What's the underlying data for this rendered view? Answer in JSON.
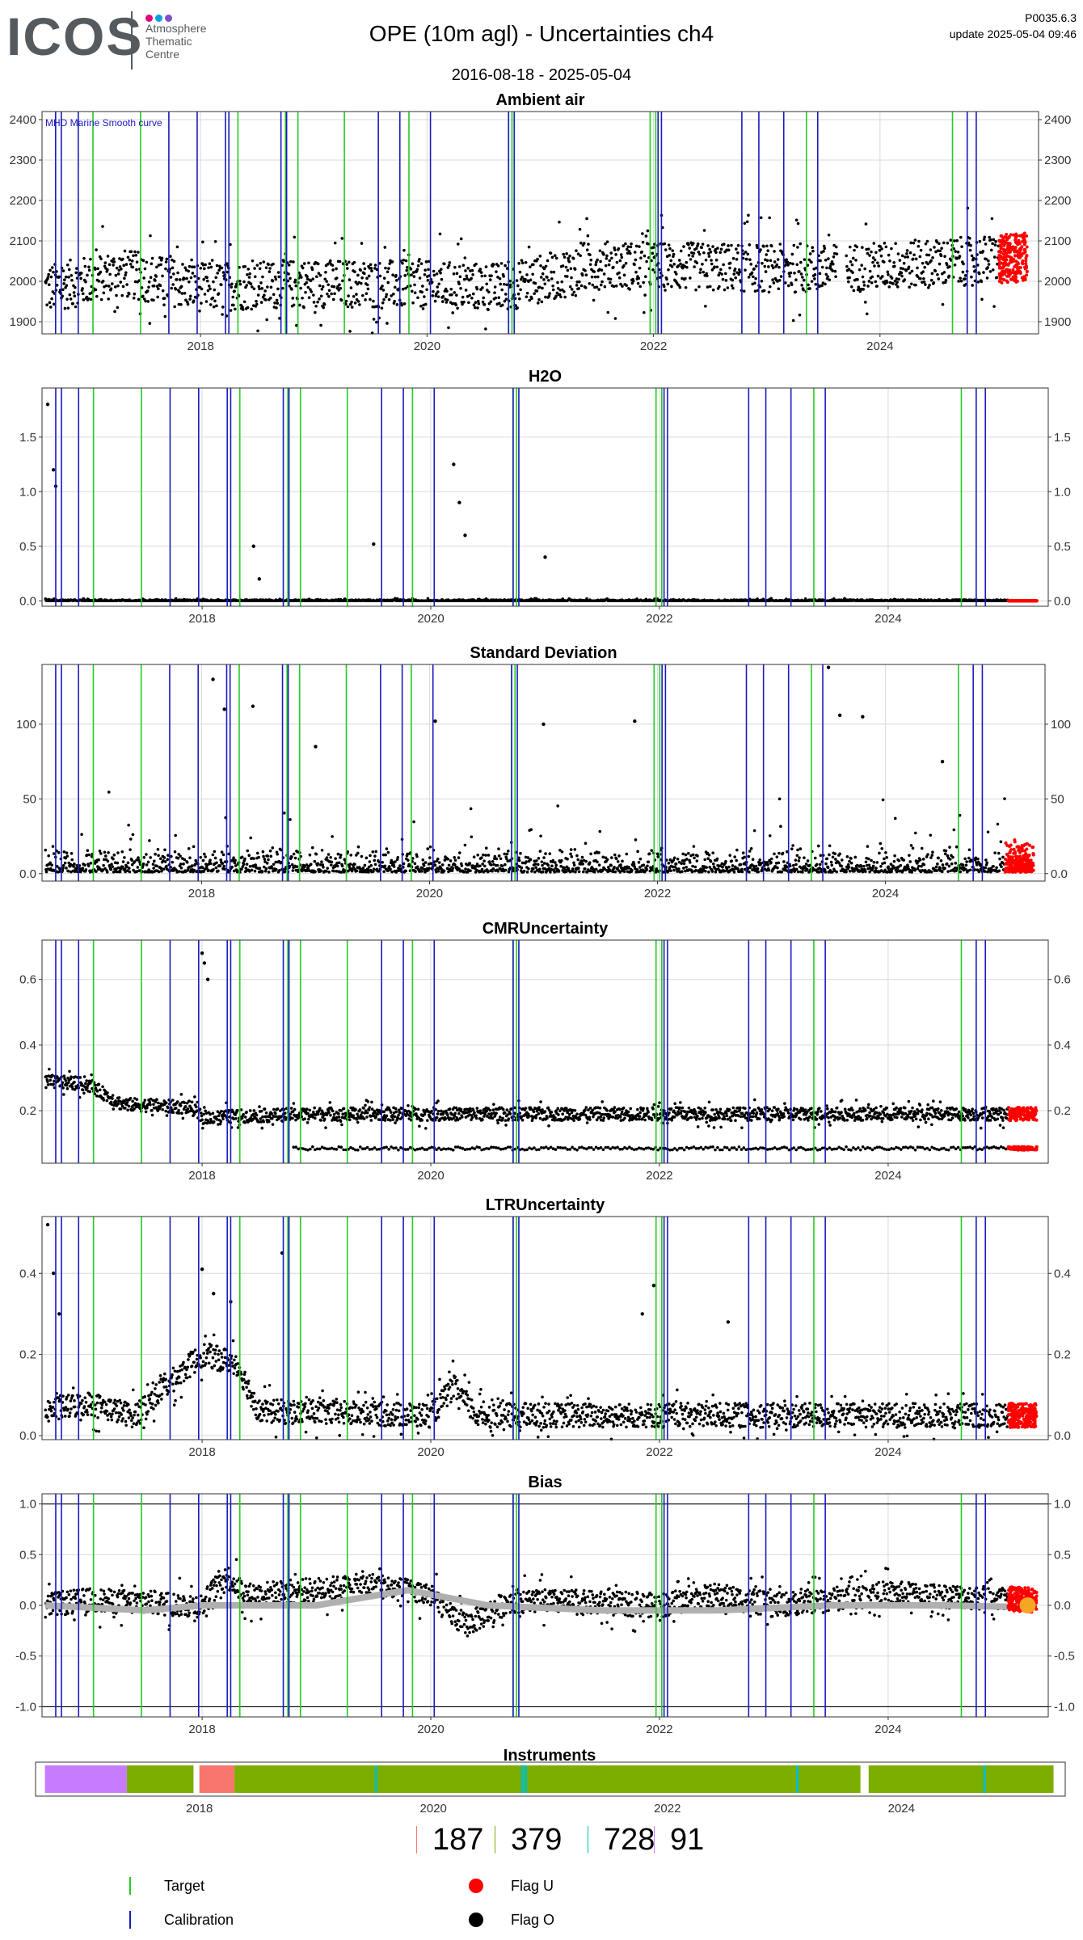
{
  "header": {
    "logo": "ICOS",
    "logo_sub": "Atmosphere Thematic Centre",
    "title": "OPE  (10m agl) - Uncertainties ch4",
    "date_range": "2016-08-18 - 2025-05-04",
    "code": "P0035.6.3",
    "update": "update  2025-05-04 09:46"
  },
  "colors": {
    "target": "#22cc22",
    "calibration": "#1a1abf",
    "flag_u": "#ff0000",
    "flag_o": "#000000",
    "grid": "#d9d9d9",
    "bias_smooth": "#b0b0b0",
    "instr_violet": "#c77cff",
    "instr_green": "#7cae00",
    "instr_red": "#f8766d",
    "instr_cyan": "#00bfc4",
    "logo_dots": [
      "#e4007c",
      "#00a0e0",
      "#7a4fc9"
    ]
  },
  "vertical_lines": {
    "calibration_x": [
      2016.72,
      2016.77,
      2016.92,
      2017.72,
      2017.97,
      2018.22,
      2018.25,
      2018.71,
      2018.76,
      2019.57,
      2019.76,
      2020.03,
      2020.72,
      2020.77,
      2022.04,
      2022.07,
      2022.78,
      2022.93,
      2023.15,
      2023.45,
      2024.77,
      2024.85
    ],
    "target_x": [
      2017.05,
      2017.47,
      2018.33,
      2018.75,
      2018.86,
      2019.27,
      2019.84,
      2020.72,
      2020.75,
      2021.97,
      2022.02,
      2023.35,
      2024.64
    ]
  },
  "chart_data": [
    {
      "type": "scatter",
      "title": "Ambient air",
      "annotation": "MHD Marine Smooth curve",
      "xlim": [
        2016.6,
        2025.4
      ],
      "ylim": [
        1870,
        2420
      ],
      "yticks": [
        1900,
        2000,
        2100,
        2200,
        2300,
        2400
      ],
      "xticks": [
        2018,
        2020,
        2022,
        2024
      ],
      "baseline": [
        [
          2016.63,
          1980
        ],
        [
          2017.3,
          2020
        ],
        [
          2018.0,
          1985
        ],
        [
          2019.0,
          1995
        ],
        [
          2020.0,
          1990
        ],
        [
          2020.7,
          1985
        ],
        [
          2021.5,
          2040
        ],
        [
          2022.5,
          2035
        ],
        [
          2023.5,
          2030
        ],
        [
          2024.5,
          2045
        ],
        [
          2025.3,
          2060
        ]
      ],
      "spread": 60,
      "flag_u_range": [
        2025.05,
        2025.3
      ]
    },
    {
      "type": "scatter",
      "title": "H2O",
      "xlim": [
        2016.6,
        2025.4
      ],
      "ylim": [
        -0.05,
        1.95
      ],
      "yticks": [
        0.0,
        0.5,
        1.0,
        1.5
      ],
      "xticks": [
        2018,
        2020,
        2022,
        2024
      ],
      "baseline": [
        [
          2016.63,
          0.0
        ],
        [
          2025.3,
          0.0
        ]
      ],
      "spread": 0.01,
      "spikes": [
        [
          2016.65,
          1.8
        ],
        [
          2016.7,
          1.2
        ],
        [
          2016.72,
          1.05
        ],
        [
          2018.45,
          0.5
        ],
        [
          2018.5,
          0.2
        ],
        [
          2019.5,
          0.52
        ],
        [
          2020.2,
          1.25
        ],
        [
          2020.25,
          0.9
        ],
        [
          2020.3,
          0.6
        ],
        [
          2021.0,
          0.4
        ]
      ],
      "flag_u_range": [
        2025.05,
        2025.3
      ]
    },
    {
      "type": "scatter",
      "title": "Standard Deviation",
      "xlim": [
        2016.6,
        2025.4
      ],
      "ylim": [
        -5,
        140
      ],
      "yticks": [
        0,
        50,
        100
      ],
      "xticks": [
        2018,
        2020,
        2022,
        2024
      ],
      "baseline": [
        [
          2016.63,
          5
        ],
        [
          2025.3,
          5
        ]
      ],
      "spread": 12,
      "spikes": [
        [
          2018.1,
          130
        ],
        [
          2018.2,
          110
        ],
        [
          2018.45,
          112
        ],
        [
          2019.0,
          85
        ],
        [
          2020.05,
          102
        ],
        [
          2021.0,
          100
        ],
        [
          2021.8,
          102
        ],
        [
          2023.5,
          138
        ],
        [
          2023.6,
          106
        ],
        [
          2023.8,
          105
        ],
        [
          2024.5,
          75
        ]
      ],
      "flag_u_range": [
        2025.05,
        2025.3
      ]
    },
    {
      "type": "scatter",
      "title": "CMRUncertainty",
      "xlim": [
        2016.6,
        2025.4
      ],
      "ylim": [
        0.04,
        0.72
      ],
      "yticks": [
        0.2,
        0.4,
        0.6
      ],
      "xticks": [
        2018,
        2020,
        2022,
        2024
      ],
      "baseline": [
        [
          2016.63,
          0.29
        ],
        [
          2017.0,
          0.28
        ],
        [
          2017.3,
          0.22
        ],
        [
          2017.9,
          0.21
        ],
        [
          2018.0,
          0.18
        ],
        [
          2019.0,
          0.19
        ],
        [
          2022.0,
          0.19
        ],
        [
          2024.0,
          0.19
        ],
        [
          2025.3,
          0.19
        ]
      ],
      "spread": 0.02,
      "lower_band": [
        [
          2018.8,
          0.085
        ],
        [
          2025.3,
          0.085
        ]
      ],
      "spikes": [
        [
          2018.0,
          0.68
        ],
        [
          2018.02,
          0.65
        ],
        [
          2018.05,
          0.6
        ]
      ],
      "flag_u_range": [
        2025.05,
        2025.3
      ]
    },
    {
      "type": "scatter",
      "title": "LTRUncertainty",
      "xlim": [
        2016.6,
        2025.4
      ],
      "ylim": [
        -0.01,
        0.54
      ],
      "yticks": [
        0.0,
        0.2,
        0.4
      ],
      "xticks": [
        2018,
        2020,
        2022,
        2024
      ],
      "baseline": [
        [
          2016.63,
          0.06
        ],
        [
          2017.0,
          0.08
        ],
        [
          2017.4,
          0.05
        ],
        [
          2018.0,
          0.2
        ],
        [
          2018.3,
          0.18
        ],
        [
          2018.5,
          0.06
        ],
        [
          2020.0,
          0.05
        ],
        [
          2020.2,
          0.12
        ],
        [
          2020.4,
          0.05
        ],
        [
          2025.3,
          0.05
        ]
      ],
      "spread": 0.03,
      "spikes": [
        [
          2016.65,
          0.52
        ],
        [
          2016.7,
          0.4
        ],
        [
          2016.75,
          0.3
        ],
        [
          2018.0,
          0.41
        ],
        [
          2018.1,
          0.35
        ],
        [
          2018.25,
          0.33
        ],
        [
          2018.7,
          0.45
        ],
        [
          2021.85,
          0.3
        ],
        [
          2021.95,
          0.37
        ],
        [
          2022.6,
          0.28
        ]
      ],
      "flag_u_range": [
        2025.05,
        2025.3
      ]
    },
    {
      "type": "scatter",
      "title": "Bias",
      "xlim": [
        2016.6,
        2025.4
      ],
      "ylim": [
        -1.1,
        1.1
      ],
      "yticks": [
        -1.0,
        -0.5,
        0.0,
        0.5,
        1.0
      ],
      "xticks": [
        2018,
        2020,
        2022,
        2024
      ],
      "hlines": [
        -1.0,
        1.0
      ],
      "baseline": [
        [
          2016.63,
          0.0
        ],
        [
          2017.0,
          0.05
        ],
        [
          2018.0,
          0.0
        ],
        [
          2018.2,
          0.3
        ],
        [
          2018.4,
          0.1
        ],
        [
          2019.5,
          0.2
        ],
        [
          2020.0,
          0.1
        ],
        [
          2020.3,
          -0.2
        ],
        [
          2020.7,
          0.05
        ],
        [
          2022.0,
          0.0
        ],
        [
          2022.5,
          0.1
        ],
        [
          2023.0,
          0.0
        ],
        [
          2024.0,
          0.12
        ],
        [
          2025.3,
          0.05
        ]
      ],
      "spread": 0.12,
      "smooth": [
        [
          2016.63,
          0.0
        ],
        [
          2017.5,
          -0.05
        ],
        [
          2018.0,
          0.0
        ],
        [
          2019.0,
          0.0
        ],
        [
          2019.8,
          0.15
        ],
        [
          2020.5,
          0.0
        ],
        [
          2021.5,
          -0.05
        ],
        [
          2022.5,
          -0.05
        ],
        [
          2023.5,
          0.0
        ],
        [
          2024.5,
          0.0
        ],
        [
          2025.3,
          -0.02
        ]
      ],
      "flag_u_range": [
        2025.05,
        2025.3
      ]
    }
  ],
  "instruments": {
    "title": "Instruments",
    "xlim": [
      2016.6,
      2025.4
    ],
    "xticks": [
      2018,
      2020,
      2022,
      2024
    ],
    "segments": [
      {
        "from": 2016.68,
        "to": 2017.38,
        "color": "instr_violet"
      },
      {
        "from": 2017.38,
        "to": 2017.95,
        "color": "instr_green"
      },
      {
        "from": 2018.0,
        "to": 2018.3,
        "color": "instr_red"
      },
      {
        "from": 2018.3,
        "to": 2023.65,
        "color": "instr_green"
      },
      {
        "from": 2023.72,
        "to": 2025.3,
        "color": "instr_green"
      }
    ],
    "cyan_marks": [
      2019.5,
      2020.75,
      2020.78,
      2023.1,
      2024.7
    ]
  },
  "legend_counts": [
    {
      "value": "187",
      "color": "instr_red"
    },
    {
      "value": "379",
      "color": "instr_green"
    },
    {
      "value": "728",
      "color": "instr_cyan"
    },
    {
      "value": "91",
      "color": "instr_violet"
    }
  ],
  "legend": {
    "target": "Target",
    "calibration": "Calibration",
    "flag_u": "Flag U",
    "flag_o": "Flag O"
  }
}
